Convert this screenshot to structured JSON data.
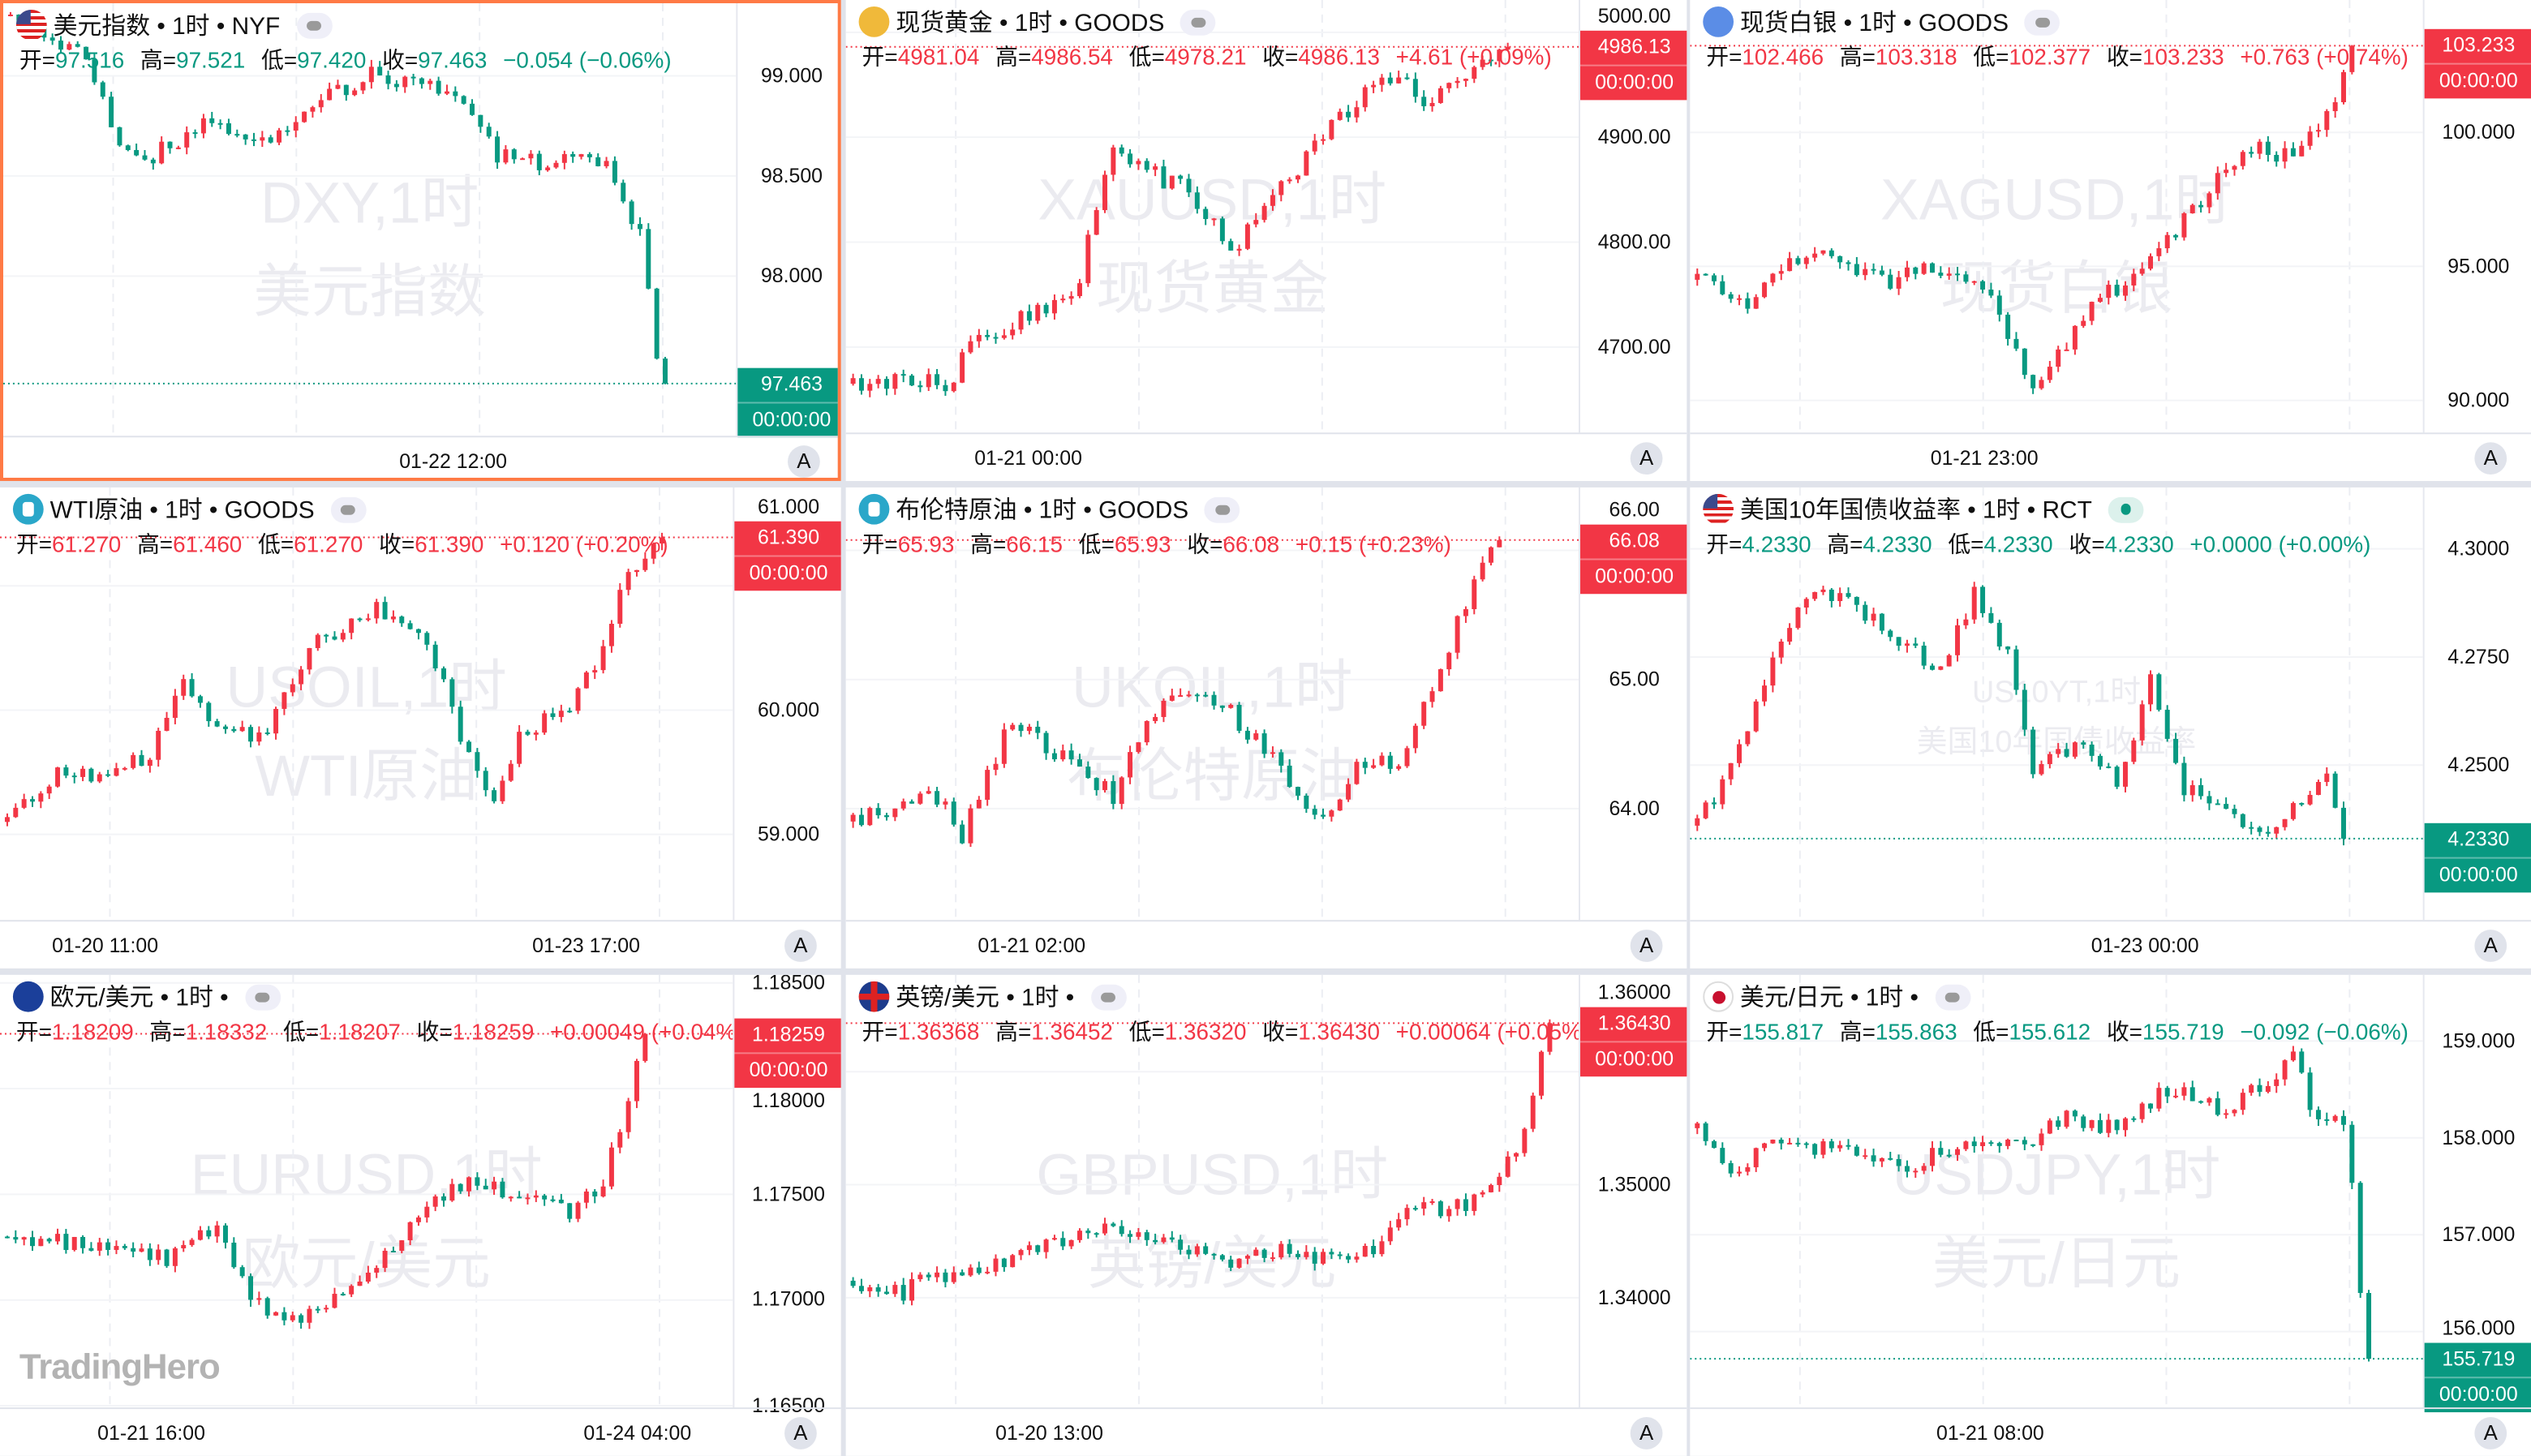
{
  "colors": {
    "up": "#f23645",
    "down": "#089981",
    "selected_border": "#ff7a45"
  },
  "ohlc_labels": {
    "open": "开=",
    "high": "高=",
    "low": "低=",
    "close": "收="
  },
  "auto_scale_label": "A",
  "logo_text": "TradingHero",
  "panels": [
    {
      "icon": "us-flag-icon",
      "icon_class": "ic-us",
      "title": "美元指数 • 1时 • NYF",
      "badge": "market-closed",
      "open": "97.516",
      "high": "97.521",
      "low": "97.420",
      "close": "97.463",
      "change": "−0.054 (−0.06%)",
      "direction": "down",
      "last_price": "97.463",
      "countdown": "00:00:00",
      "watermark": [
        "DXY,1时",
        "美元指数"
      ],
      "time_labels": [
        {
          "text": "01-22 12:00",
          "pos": 0.535
        }
      ],
      "chart_data": {
        "type": "candlestick",
        "ylim": [
          97.202,
          99.363
        ],
        "ticks": [
          "99.000",
          "98.500",
          "98.000"
        ],
        "bars": 79,
        "path": [
          [
            0,
            99.3
          ],
          [
            9,
            99.1
          ],
          [
            13,
            98.65
          ],
          [
            17,
            98.6
          ],
          [
            23,
            98.75
          ],
          [
            31,
            98.7
          ],
          [
            38,
            98.9
          ],
          [
            43,
            99.0
          ],
          [
            50,
            98.95
          ],
          [
            54,
            98.85
          ],
          [
            58,
            98.6
          ],
          [
            64,
            98.55
          ],
          [
            71,
            98.6
          ],
          [
            75,
            98.2
          ],
          [
            77,
            97.6
          ],
          [
            78,
            97.463
          ]
        ]
      }
    },
    {
      "icon": "gold-icon",
      "icon_class": "ic-gold",
      "title": "现货黄金 • 1时 • GOODS",
      "badge": "market-closed",
      "open": "4981.04",
      "high": "4986.54",
      "low": "4978.21",
      "close": "4986.13",
      "change": "+4.61 (+0.09%)",
      "direction": "up",
      "last_price": "4986.13",
      "countdown": "00:00:00",
      "watermark": [
        "XAUUSD,1时",
        "现货黄金"
      ],
      "time_labels": [
        {
          "text": "01-21 00:00",
          "pos": 0.217
        }
      ],
      "chart_data": {
        "type": "candlestick",
        "ylim": [
          4618.5,
          5030.8
        ],
        "ticks": [
          "5000.00",
          "4900.00",
          "4800.00",
          "4700.00"
        ],
        "bars": 79,
        "path": [
          [
            0,
            4665
          ],
          [
            9,
            4668
          ],
          [
            11,
            4660
          ],
          [
            14,
            4700
          ],
          [
            21,
            4730
          ],
          [
            27,
            4760
          ],
          [
            28,
            4800
          ],
          [
            31,
            4890
          ],
          [
            37,
            4860
          ],
          [
            40,
            4850
          ],
          [
            45,
            4790
          ],
          [
            48,
            4820
          ],
          [
            54,
            4880
          ],
          [
            58,
            4920
          ],
          [
            62,
            4950
          ],
          [
            65,
            4960
          ],
          [
            68,
            4930
          ],
          [
            73,
            4960
          ],
          [
            78,
            4986.13
          ]
        ]
      }
    },
    {
      "icon": "silver-icon",
      "icon_class": "ic-silver",
      "title": "现货白银 • 1时 • GOODS",
      "badge": "market-closed",
      "open": "102.466",
      "high": "103.318",
      "low": "102.377",
      "close": "103.233",
      "change": "+0.763 (+0.74%)",
      "direction": "up",
      "last_price": "103.233",
      "countdown": "00:00:00",
      "watermark": [
        "XAGUSD,1时",
        "现货白银"
      ],
      "time_labels": [
        {
          "text": "01-21 23:00",
          "pos": 0.35
        }
      ],
      "chart_data": {
        "type": "candlestick",
        "ylim": [
          88.8,
          104.94
        ],
        "ticks": [
          "100.000",
          "95.000",
          "90.000"
        ],
        "bars": 79,
        "path": [
          [
            0,
            94.5
          ],
          [
            6,
            93.5
          ],
          [
            11,
            95
          ],
          [
            15,
            95.5
          ],
          [
            23,
            94.5
          ],
          [
            29,
            95
          ],
          [
            34,
            94.3
          ],
          [
            38,
            92
          ],
          [
            40,
            90.5
          ],
          [
            44,
            92
          ],
          [
            48,
            94
          ],
          [
            52,
            94.5
          ],
          [
            56,
            96
          ],
          [
            60,
            97.5
          ],
          [
            63,
            98.5
          ],
          [
            67,
            99.5
          ],
          [
            71,
            99
          ],
          [
            75,
            100.5
          ],
          [
            78,
            103.233
          ]
        ]
      }
    },
    {
      "icon": "oil-icon",
      "icon_class": "ic-oil",
      "title": "WTI原油 • 1时 • GOODS",
      "badge": "market-closed",
      "open": "61.270",
      "high": "61.460",
      "low": "61.270",
      "close": "61.390",
      "change": "+0.120 (+0.20%)",
      "direction": "up",
      "last_price": "61.390",
      "countdown": "00:00:00",
      "watermark": [
        "USOIL,1时",
        "WTI原油"
      ],
      "time_labels": [
        {
          "text": "01-20 11:00",
          "pos": 0.125
        },
        {
          "text": "01-23 17:00",
          "pos": 0.697
        }
      ],
      "chart_data": {
        "type": "candlestick",
        "ylim": [
          58.311,
          61.792
        ],
        "ticks": [
          "61.000",
          "60.000",
          "59.000"
        ],
        "bars": 79,
        "path": [
          [
            0,
            59.1
          ],
          [
            6,
            59.5
          ],
          [
            11,
            59.5
          ],
          [
            17,
            59.6
          ],
          [
            21,
            60.3
          ],
          [
            25,
            59.8
          ],
          [
            31,
            59.8
          ],
          [
            36,
            60.5
          ],
          [
            44,
            60.8
          ],
          [
            50,
            60.6
          ],
          [
            54,
            59.8
          ],
          [
            58,
            59.3
          ],
          [
            61,
            59.8
          ],
          [
            67,
            60.0
          ],
          [
            71,
            60.5
          ],
          [
            74,
            61.1
          ],
          [
            78,
            61.39
          ]
        ]
      }
    },
    {
      "icon": "oil-icon",
      "icon_class": "ic-oil",
      "title": "布伦特原油 • 1时 • GOODS",
      "badge": "market-closed",
      "open": "65.93",
      "high": "66.15",
      "low": "65.93",
      "close": "66.08",
      "change": "+0.15 (+0.23%)",
      "direction": "up",
      "last_price": "66.08",
      "countdown": "00:00:00",
      "watermark": [
        "UKOIL,1时",
        "布伦特原油"
      ],
      "time_labels": [
        {
          "text": "01-21 02:00",
          "pos": 0.221
        }
      ],
      "chart_data": {
        "type": "candlestick",
        "ylim": [
          63.1375,
          66.4875
        ],
        "ticks": [
          "66.00",
          "65.00",
          "64.00"
        ],
        "bars": 78,
        "path": [
          [
            0,
            63.9
          ],
          [
            10,
            64.1
          ],
          [
            13,
            63.8
          ],
          [
            19,
            64.7
          ],
          [
            25,
            64.4
          ],
          [
            31,
            64.1
          ],
          [
            37,
            64.9
          ],
          [
            44,
            64.8
          ],
          [
            50,
            64.4
          ],
          [
            56,
            63.9
          ],
          [
            60,
            64.3
          ],
          [
            65,
            64.4
          ],
          [
            69,
            64.9
          ],
          [
            73,
            65.6
          ],
          [
            77,
            66.08
          ]
        ]
      }
    },
    {
      "icon": "us-flag-icon",
      "icon_class": "ic-us",
      "title": "美国10年国债收益率 • 1时 • RCT",
      "badge": "market-open",
      "open": "4.2330",
      "high": "4.2330",
      "low": "4.2330",
      "close": "4.2330",
      "change": "+0.0000 (+0.00%)",
      "direction": "down",
      "last_price": "4.2330",
      "countdown": "00:00:00",
      "watermark": [
        "US10YT,1时",
        "美国10年国债收益率"
      ],
      "time_labels": [
        {
          "text": "01-23 00:00",
          "pos": 0.541
        }
      ],
      "chart_data": {
        "type": "candlestick",
        "ylim": [
          4.2142,
          4.3142
        ],
        "ticks": [
          "4.3000",
          "4.2750",
          "4.2500"
        ],
        "bars": 78,
        "path": [
          [
            0,
            4.236
          ],
          [
            4,
            4.25
          ],
          [
            8,
            4.268
          ],
          [
            12,
            4.288
          ],
          [
            17,
            4.29
          ],
          [
            23,
            4.28
          ],
          [
            29,
            4.272
          ],
          [
            33,
            4.29
          ],
          [
            37,
            4.275
          ],
          [
            40,
            4.25
          ],
          [
            46,
            4.255
          ],
          [
            50,
            4.245
          ],
          [
            54,
            4.27
          ],
          [
            58,
            4.245
          ],
          [
            63,
            4.24
          ],
          [
            67,
            4.235
          ],
          [
            71,
            4.24
          ],
          [
            75,
            4.25
          ],
          [
            77,
            4.233
          ]
        ]
      }
    },
    {
      "icon": "eur-usd-flag-icon",
      "icon_class": "ic-eu",
      "title": "欧元/美元 • 1时 •",
      "badge": "market-closed",
      "open": "1.18209",
      "high": "1.18332",
      "low": "1.18207",
      "close": "1.18259",
      "change": "+0.00049 (+0.04%)",
      "direction": "up",
      "last_price": "1.18259",
      "countdown": "00:00:00",
      "watermark": [
        "EURUSD,1时",
        "欧元/美元"
      ],
      "time_labels": [
        {
          "text": "01-21 16:00",
          "pos": 0.18
        },
        {
          "text": "01-24 04:00",
          "pos": 0.758
        }
      ],
      "chart_data": {
        "type": "candlestick",
        "ylim": [
          1.16492,
          1.18538
        ],
        "ticks": [
          "1.18500",
          "1.18000",
          "1.17500",
          "1.17000",
          "1.16500"
        ],
        "bars": 77,
        "path": [
          [
            0,
            1.173
          ],
          [
            10,
            1.1725
          ],
          [
            19,
            1.172
          ],
          [
            25,
            1.1735
          ],
          [
            29,
            1.17
          ],
          [
            33,
            1.169
          ],
          [
            42,
            1.1705
          ],
          [
            48,
            1.1735
          ],
          [
            54,
            1.1755
          ],
          [
            61,
            1.175
          ],
          [
            67,
            1.174
          ],
          [
            71,
            1.1755
          ],
          [
            74,
            1.1795
          ],
          [
            76,
            1.18259
          ]
        ]
      }
    },
    {
      "icon": "gbp-usd-flag-icon",
      "icon_class": "ic-gb",
      "title": "英镑/美元 • 1时 •",
      "badge": "market-closed",
      "open": "1.36368",
      "high": "1.36452",
      "low": "1.36320",
      "close": "1.36430",
      "change": "+0.00064 (+0.05%)",
      "direction": "up",
      "last_price": "1.36430",
      "countdown": "00:00:00",
      "watermark": [
        "GBPUSD,1时",
        "英镑/美元"
      ],
      "time_labels": [
        {
          "text": "01-20 13:00",
          "pos": 0.242
        }
      ],
      "chart_data": {
        "type": "candlestick",
        "ylim": [
          1.33029,
          1.36857
        ],
        "ticks": [
          "1.36000",
          "1.35000",
          "1.34000"
        ],
        "bars": 84,
        "path": [
          [
            0,
            1.3415
          ],
          [
            4,
            1.341
          ],
          [
            6,
            1.3405
          ],
          [
            10,
            1.342
          ],
          [
            19,
            1.3435
          ],
          [
            27,
            1.346
          ],
          [
            33,
            1.3455
          ],
          [
            38,
            1.3445
          ],
          [
            44,
            1.343
          ],
          [
            50,
            1.344
          ],
          [
            58,
            1.3435
          ],
          [
            62,
            1.3445
          ],
          [
            65,
            1.3475
          ],
          [
            73,
            1.348
          ],
          [
            77,
            1.3505
          ],
          [
            79,
            1.353
          ],
          [
            81,
            1.358
          ],
          [
            83,
            1.3643
          ]
        ]
      }
    },
    {
      "icon": "usd-jpy-flag-icon",
      "icon_class": "ic-jp",
      "title": "美元/日元 • 1时 •",
      "badge": "market-closed",
      "open": "155.817",
      "high": "155.863",
      "low": "155.612",
      "close": "155.719",
      "change": "−0.092 (−0.06%)",
      "direction": "down",
      "last_price": "155.719",
      "countdown": "00:00:00",
      "watermark": [
        "USDJPY,1时",
        "美元/日元"
      ],
      "time_labels": [
        {
          "text": "01-21 08:00",
          "pos": 0.357
        }
      ],
      "chart_data": {
        "type": "candlestick",
        "ylim": [
          155.217,
          159.683
        ],
        "ticks": [
          "159.000",
          "158.000",
          "157.000",
          "156.000"
        ],
        "bars": 81,
        "path": [
          [
            0,
            158.1
          ],
          [
            4,
            157.6
          ],
          [
            8,
            157.9
          ],
          [
            15,
            157.9
          ],
          [
            25,
            157.7
          ],
          [
            31,
            157.9
          ],
          [
            38,
            157.9
          ],
          [
            44,
            158.2
          ],
          [
            50,
            158.1
          ],
          [
            56,
            158.5
          ],
          [
            60,
            158.4
          ],
          [
            63,
            158.3
          ],
          [
            67,
            158.5
          ],
          [
            71,
            158.9
          ],
          [
            73,
            158.3
          ],
          [
            77,
            158.1
          ],
          [
            78,
            157.5
          ],
          [
            79,
            156.4
          ],
          [
            80,
            155.719
          ]
        ]
      }
    }
  ]
}
